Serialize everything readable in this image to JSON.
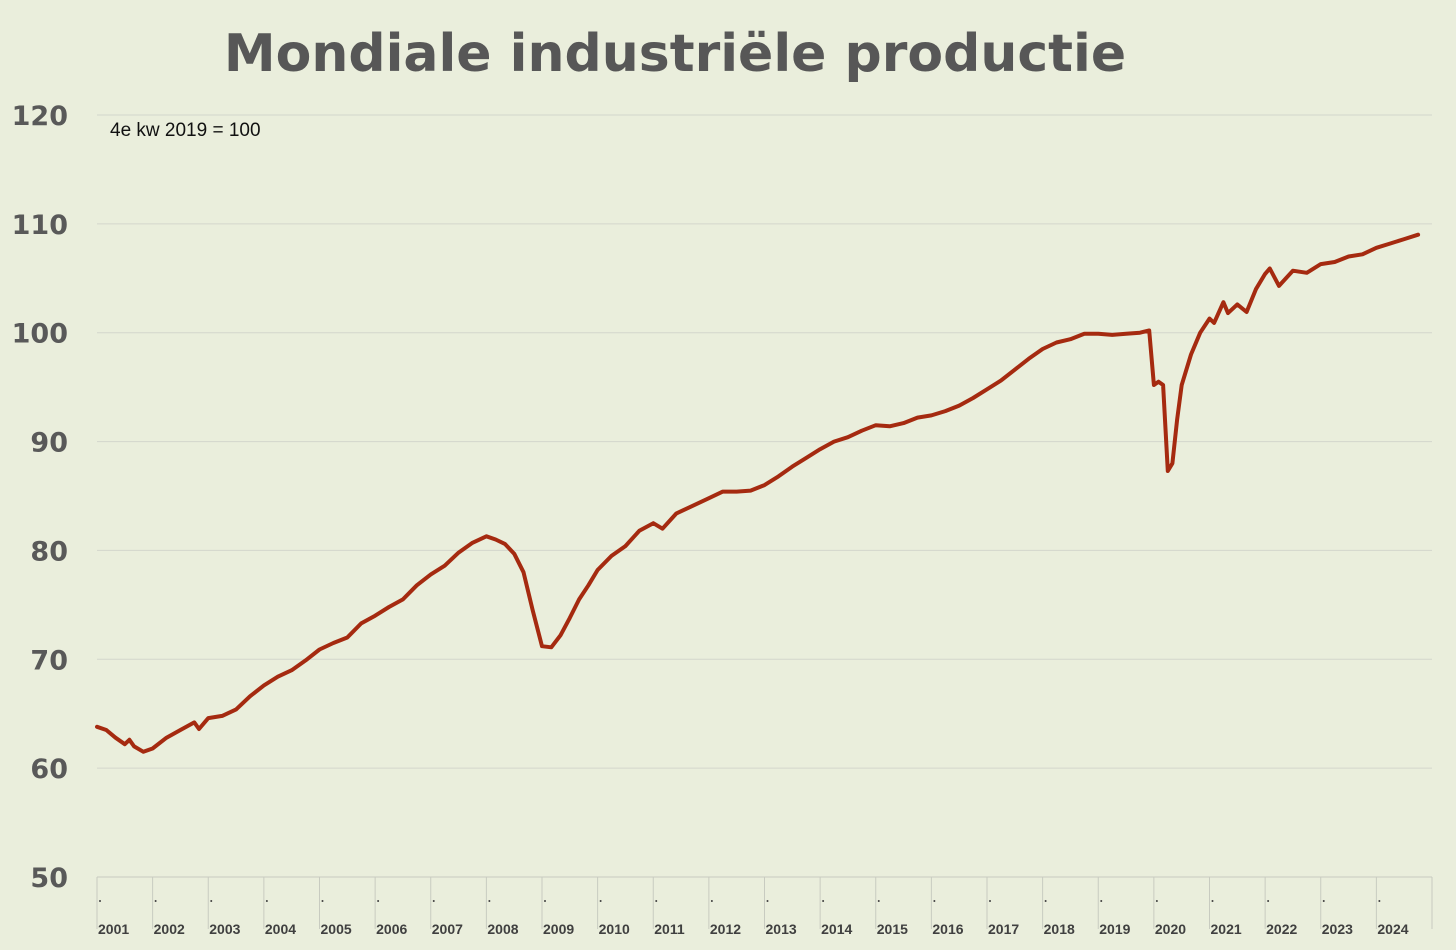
{
  "chart_data": {
    "type": "line",
    "title": "Mondiale industriële productie",
    "subtitle": "4e kw 2019 = 100",
    "xlabel": "",
    "ylabel": "",
    "ylim": [
      50,
      120
    ],
    "yticks": [
      "50",
      "60",
      "70",
      "80",
      "90",
      "100",
      "110",
      "120"
    ],
    "xticks": [
      "2001",
      "2002",
      "2003",
      "2004",
      "2005",
      "2006",
      "2007",
      "2008",
      "2009",
      "2010",
      "2011",
      "2012",
      "2013",
      "2014",
      "2015",
      "2016",
      "2017",
      "2018",
      "2019",
      "2020",
      "2021",
      "2022",
      "2023",
      "2024"
    ],
    "grid": true,
    "legend": "none",
    "line_color": "#a52a10",
    "series": [
      {
        "name": "",
        "points": [
          [
            "2001-01",
            63.8
          ],
          [
            "2001-03",
            63.5
          ],
          [
            "2001-05",
            62.8
          ],
          [
            "2001-07",
            62.2
          ],
          [
            "2001-08",
            62.6
          ],
          [
            "2001-09",
            62.0
          ],
          [
            "2001-11",
            61.5
          ],
          [
            "2002-01",
            61.8
          ],
          [
            "2002-04",
            62.8
          ],
          [
            "2002-07",
            63.5
          ],
          [
            "2002-10",
            64.2
          ],
          [
            "2002-11",
            63.6
          ],
          [
            "2003-01",
            64.6
          ],
          [
            "2003-04",
            64.8
          ],
          [
            "2003-07",
            65.4
          ],
          [
            "2003-10",
            66.6
          ],
          [
            "2004-01",
            67.6
          ],
          [
            "2004-04",
            68.4
          ],
          [
            "2004-07",
            69.0
          ],
          [
            "2004-10",
            69.9
          ],
          [
            "2005-01",
            70.9
          ],
          [
            "2005-04",
            71.5
          ],
          [
            "2005-07",
            72.0
          ],
          [
            "2005-10",
            73.3
          ],
          [
            "2006-01",
            74.0
          ],
          [
            "2006-04",
            74.8
          ],
          [
            "2006-07",
            75.5
          ],
          [
            "2006-10",
            76.8
          ],
          [
            "2007-01",
            77.8
          ],
          [
            "2007-04",
            78.6
          ],
          [
            "2007-07",
            79.8
          ],
          [
            "2007-10",
            80.7
          ],
          [
            "2008-01",
            81.3
          ],
          [
            "2008-03",
            81.0
          ],
          [
            "2008-05",
            80.6
          ],
          [
            "2008-07",
            79.7
          ],
          [
            "2008-09",
            78.0
          ],
          [
            "2008-11",
            74.5
          ],
          [
            "2009-01",
            71.2
          ],
          [
            "2009-03",
            71.1
          ],
          [
            "2009-05",
            72.2
          ],
          [
            "2009-07",
            73.8
          ],
          [
            "2009-09",
            75.5
          ],
          [
            "2009-11",
            76.8
          ],
          [
            "2010-01",
            78.2
          ],
          [
            "2010-04",
            79.5
          ],
          [
            "2010-07",
            80.4
          ],
          [
            "2010-10",
            81.8
          ],
          [
            "2011-01",
            82.5
          ],
          [
            "2011-03",
            82.0
          ],
          [
            "2011-06",
            83.4
          ],
          [
            "2011-09",
            84.0
          ],
          [
            "2012-01",
            84.8
          ],
          [
            "2012-04",
            85.4
          ],
          [
            "2012-07",
            85.4
          ],
          [
            "2012-10",
            85.5
          ],
          [
            "2013-01",
            86.0
          ],
          [
            "2013-04",
            86.8
          ],
          [
            "2013-07",
            87.7
          ],
          [
            "2013-10",
            88.5
          ],
          [
            "2014-01",
            89.3
          ],
          [
            "2014-04",
            90.0
          ],
          [
            "2014-07",
            90.4
          ],
          [
            "2014-10",
            91.0
          ],
          [
            "2015-01",
            91.5
          ],
          [
            "2015-04",
            91.4
          ],
          [
            "2015-07",
            91.7
          ],
          [
            "2015-10",
            92.2
          ],
          [
            "2016-01",
            92.4
          ],
          [
            "2016-04",
            92.8
          ],
          [
            "2016-07",
            93.3
          ],
          [
            "2016-10",
            94.0
          ],
          [
            "2017-01",
            94.8
          ],
          [
            "2017-04",
            95.6
          ],
          [
            "2017-07",
            96.6
          ],
          [
            "2017-10",
            97.6
          ],
          [
            "2018-01",
            98.5
          ],
          [
            "2018-04",
            99.1
          ],
          [
            "2018-07",
            99.4
          ],
          [
            "2018-10",
            99.9
          ],
          [
            "2019-01",
            99.9
          ],
          [
            "2019-04",
            99.8
          ],
          [
            "2019-07",
            99.9
          ],
          [
            "2019-10",
            100.0
          ],
          [
            "2019-12",
            100.2
          ],
          [
            "2020-01",
            95.2
          ],
          [
            "2020-02",
            95.5
          ],
          [
            "2020-03",
            95.2
          ],
          [
            "2020-04",
            87.3
          ],
          [
            "2020-05",
            88.0
          ],
          [
            "2020-06",
            92.0
          ],
          [
            "2020-07",
            95.2
          ],
          [
            "2020-09",
            98.0
          ],
          [
            "2020-11",
            100.0
          ],
          [
            "2021-01",
            101.3
          ],
          [
            "2021-02",
            100.9
          ],
          [
            "2021-04",
            102.8
          ],
          [
            "2021-05",
            101.8
          ],
          [
            "2021-07",
            102.6
          ],
          [
            "2021-09",
            101.9
          ],
          [
            "2021-11",
            104.0
          ],
          [
            "2022-01",
            105.4
          ],
          [
            "2022-02",
            105.9
          ],
          [
            "2022-04",
            104.3
          ],
          [
            "2022-07",
            105.7
          ],
          [
            "2022-10",
            105.5
          ],
          [
            "2023-01",
            106.3
          ],
          [
            "2023-04",
            106.5
          ],
          [
            "2023-07",
            107.0
          ],
          [
            "2023-10",
            107.2
          ],
          [
            "2024-01",
            107.8
          ],
          [
            "2024-04",
            108.2
          ],
          [
            "2024-07",
            108.6
          ],
          [
            "2024-10",
            109.0
          ]
        ]
      }
    ]
  }
}
